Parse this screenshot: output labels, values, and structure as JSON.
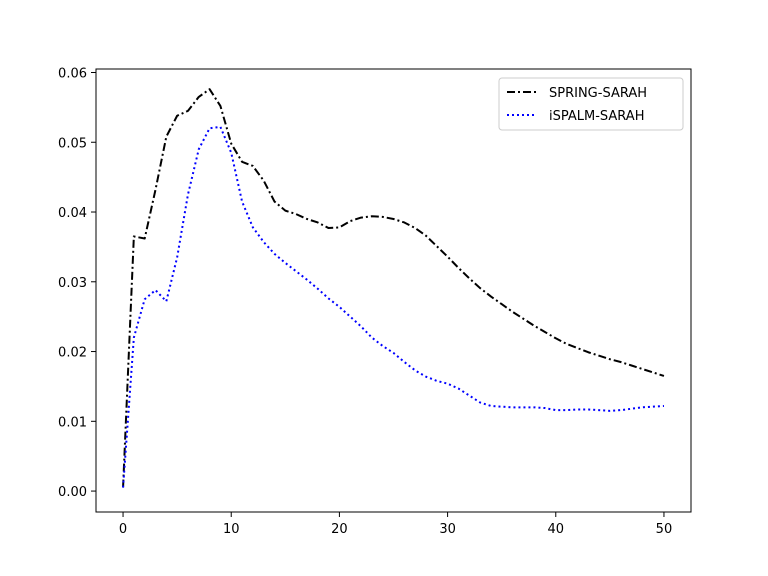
{
  "chart_data": {
    "type": "line",
    "title": "",
    "xlabel": "",
    "ylabel": "",
    "xlim": [
      -2.5,
      52.5
    ],
    "ylim": [
      -0.003,
      0.0605
    ],
    "xticks": [
      0,
      10,
      20,
      30,
      40,
      50
    ],
    "xtick_labels": [
      "0",
      "10",
      "20",
      "30",
      "40",
      "50"
    ],
    "yticks": [
      0.0,
      0.01,
      0.02,
      0.03,
      0.04,
      0.05,
      0.06
    ],
    "ytick_labels": [
      "0.00",
      "0.01",
      "0.02",
      "0.03",
      "0.04",
      "0.05",
      "0.06"
    ],
    "grid": false,
    "legend_position": "top-right",
    "x": [
      0,
      1,
      2,
      3,
      4,
      5,
      6,
      7,
      8,
      9,
      10,
      11,
      12,
      13,
      14,
      15,
      16,
      17,
      18,
      19,
      20,
      21,
      22,
      23,
      24,
      25,
      26,
      27,
      28,
      29,
      30,
      31,
      32,
      33,
      34,
      35,
      36,
      37,
      38,
      39,
      40,
      41,
      42,
      43,
      44,
      45,
      46,
      47,
      48,
      49,
      50
    ],
    "series": [
      {
        "name": "SPRING-SARAH",
        "color": "#000000",
        "style": "dashdot",
        "values": [
          0.0005,
          0.0365,
          0.0362,
          0.0432,
          0.0508,
          0.0538,
          0.0545,
          0.0565,
          0.0576,
          0.0552,
          0.0498,
          0.0472,
          0.0466,
          0.0445,
          0.0415,
          0.0402,
          0.0397,
          0.039,
          0.0385,
          0.0377,
          0.0378,
          0.0387,
          0.0392,
          0.0394,
          0.0393,
          0.039,
          0.0385,
          0.0377,
          0.0366,
          0.0351,
          0.0336,
          0.032,
          0.0305,
          0.0291,
          0.0279,
          0.0268,
          0.0257,
          0.0247,
          0.0237,
          0.0228,
          0.0219,
          0.0211,
          0.0205,
          0.0199,
          0.0194,
          0.0189,
          0.0185,
          0.018,
          0.0175,
          0.017,
          0.0165
        ]
      },
      {
        "name": "iSPALM-SARAH",
        "color": "#0000ff",
        "style": "dotted",
        "values": [
          0.0005,
          0.022,
          0.0275,
          0.0288,
          0.0272,
          0.0335,
          0.0425,
          0.049,
          0.052,
          0.0522,
          0.0485,
          0.0415,
          0.0378,
          0.0357,
          0.034,
          0.0327,
          0.0315,
          0.0303,
          0.029,
          0.0276,
          0.0264,
          0.025,
          0.0236,
          0.022,
          0.0208,
          0.0198,
          0.0185,
          0.0173,
          0.0164,
          0.0158,
          0.0154,
          0.0147,
          0.0137,
          0.0127,
          0.0122,
          0.0121,
          0.012,
          0.012,
          0.012,
          0.0119,
          0.0116,
          0.0116,
          0.0117,
          0.0117,
          0.0116,
          0.0115,
          0.0116,
          0.0118,
          0.012,
          0.0121,
          0.0122
        ]
      }
    ]
  }
}
